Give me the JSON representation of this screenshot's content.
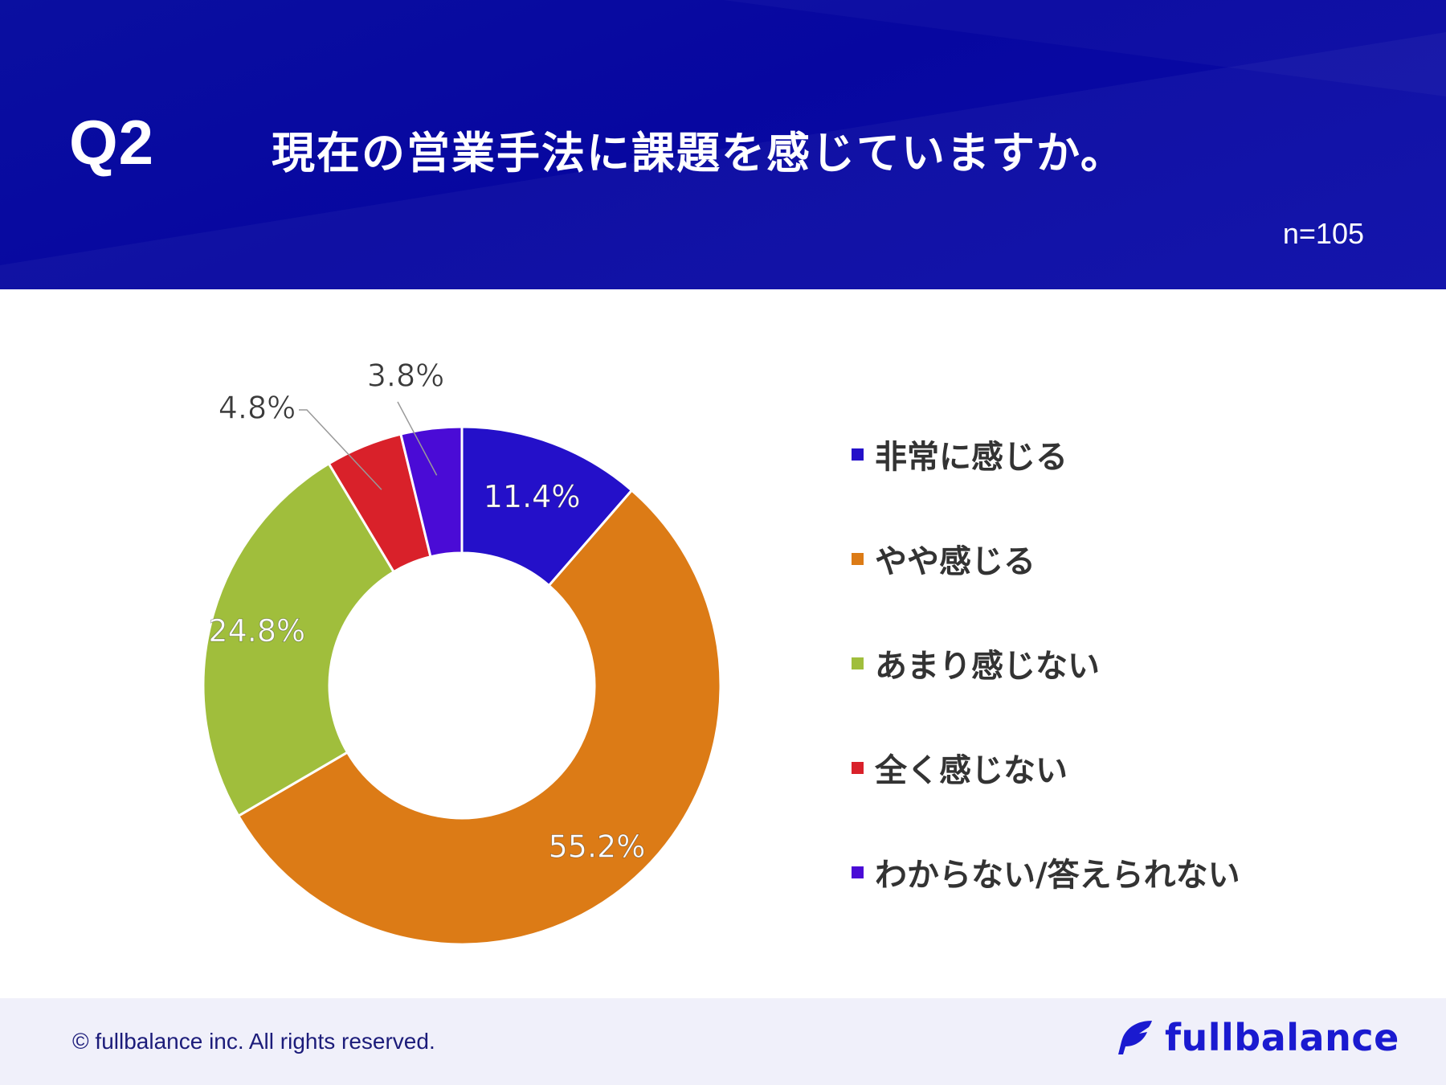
{
  "header": {
    "question_number": "Q2",
    "question_text": "現在の営業手法に課題を感じていますか。",
    "sample_size": "n=105"
  },
  "chart_data": {
    "type": "pie",
    "variant": "donut",
    "title": "現在の営業手法に課題を感じていますか。",
    "legend_position": "right",
    "slices": [
      {
        "label": "非常に感じる",
        "value": 11.4,
        "display": "11.4%",
        "color": "#2410c9"
      },
      {
        "label": "やや感じる",
        "value": 55.2,
        "display": "55.2%",
        "color": "#dc7b16"
      },
      {
        "label": "あまり感じない",
        "value": 24.8,
        "display": "24.8%",
        "color": "#a0be3c"
      },
      {
        "label": "全く感じない",
        "value": 4.8,
        "display": "4.8%",
        "color": "#d9212a"
      },
      {
        "label": "わからない/答えられない",
        "value": 3.8,
        "display": "3.8%",
        "color": "#4a0bd6"
      }
    ]
  },
  "footer": {
    "copyright": "© fullbalance inc. All rights reserved.",
    "brand": "fullbalance",
    "brand_color": "#1a1ad0"
  }
}
